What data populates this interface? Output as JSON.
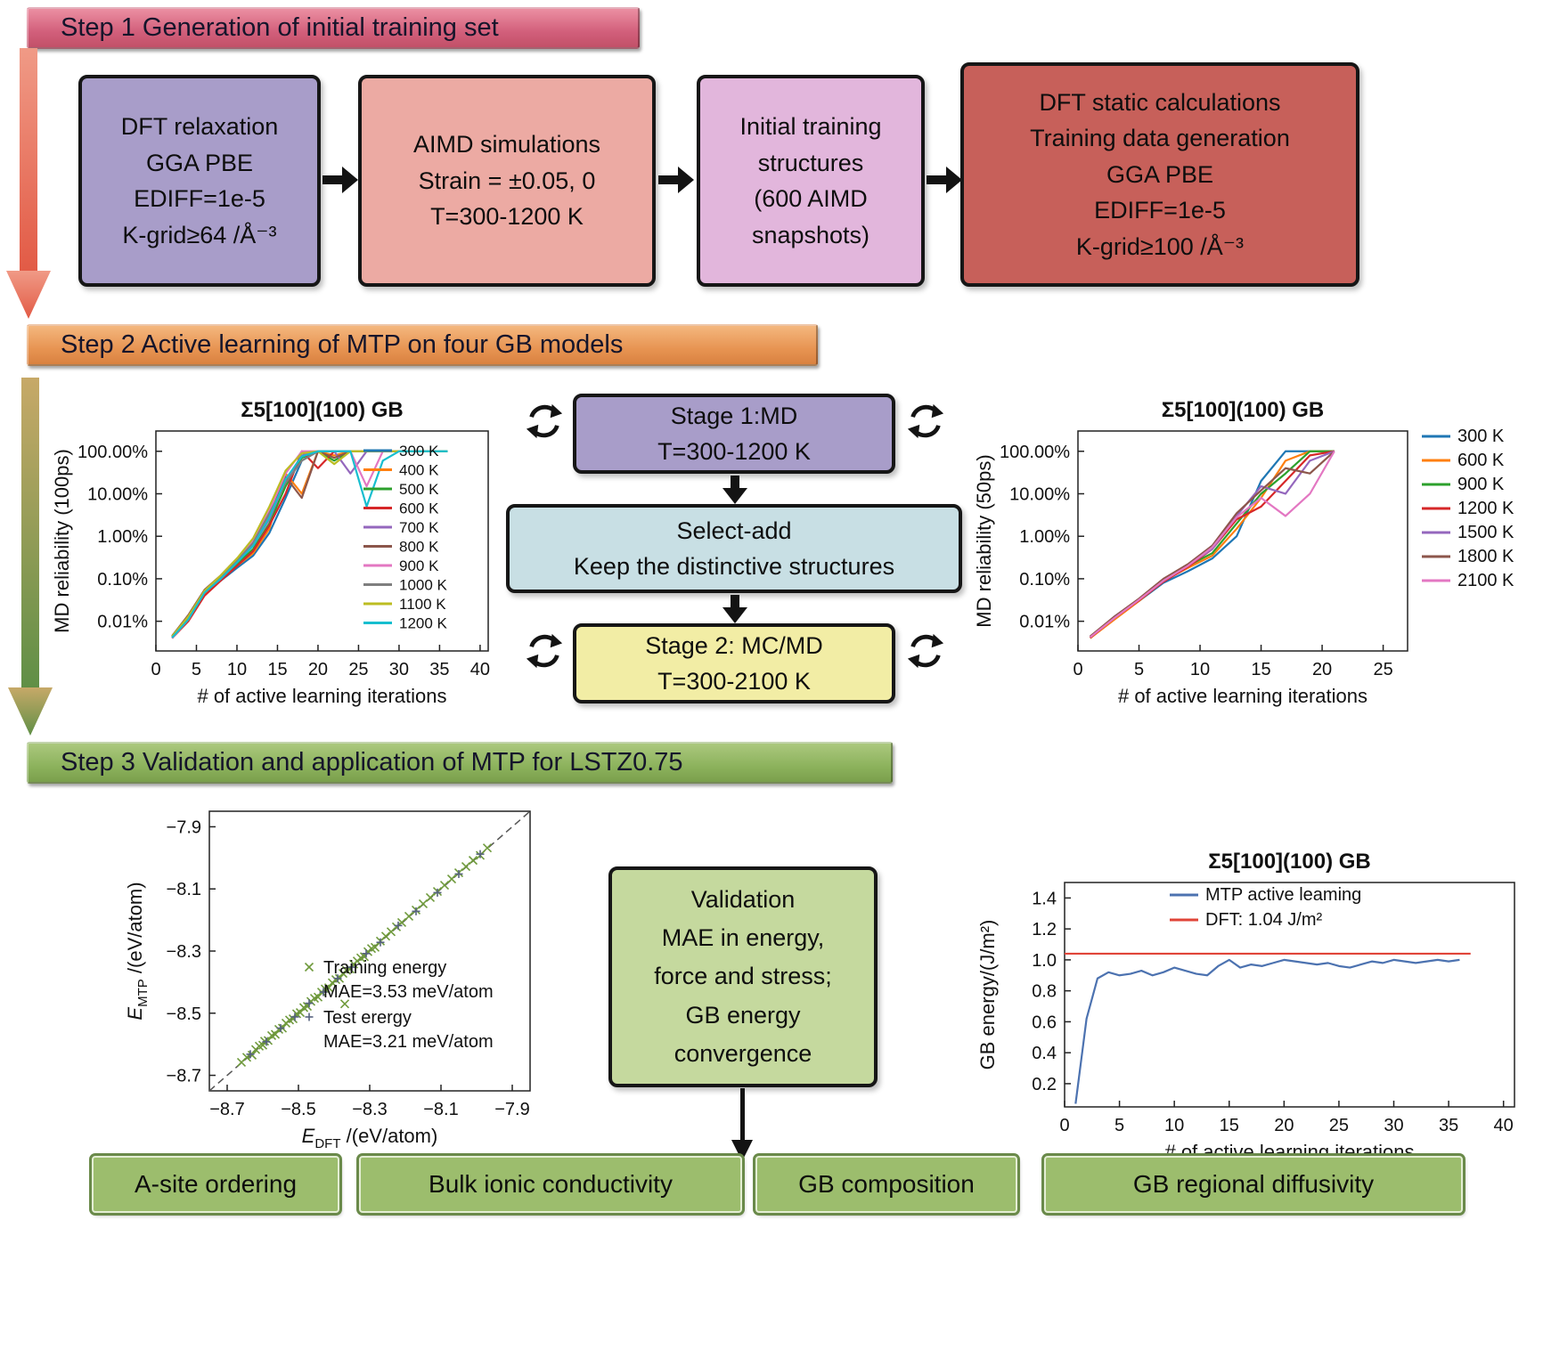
{
  "banners": {
    "step1": "Step 1 Generation of initial training set",
    "step2": "Step 2 Active learning of MTP on four GB models",
    "step3": "Step 3 Validation and application of MTP for LSTZ0.75"
  },
  "step1_boxes": [
    "DFT relaxation\nGGA PBE\nEDIFF=1e-5\nK-grid≥64 /Å⁻³",
    "AIMD simulations\nStrain = ±0.05, 0\nT=300-1200 K",
    "Initial training\nstructures\n(600 AIMD\nsnapshots)",
    "DFT static calculations\nTraining data generation\nGGA PBE\nEDIFF=1e-5\nK-grid≥100 /Å⁻³"
  ],
  "flow": {
    "stage1": "Stage 1:MD\nT=300-1200 K",
    "select_add": "Select-add\nKeep the distinctive structures",
    "stage2": "Stage 2: MC/MD\nT=300-2100 K",
    "validation": "Validation\nMAE in energy,\nforce and stress;\nGB energy\nconvergence"
  },
  "bottom_boxes": [
    "A-site ordering",
    "Bulk ionic conductivity",
    "GB composition",
    "GB regional diffusivity"
  ],
  "colors": {
    "step1_banner": "#d2607b",
    "step2_banner": "#e79452",
    "step3_banner": "#8cb25c",
    "box_dft_relax": "#a89dc9",
    "box_aimd": "#ecaaa3",
    "box_initial": "#e2b6dc",
    "box_dft_static": "#c7605a",
    "stage1_box": "#a89dc9",
    "select_add_box": "#c8dfe4",
    "stage2_box": "#f2eda5",
    "validation_box": "#c5d99e",
    "application_box": "#9cbd6d",
    "arrow_step1_2": "#e2604c",
    "arrow_step2_3_start": "#c7a968",
    "arrow_step2_3_end": "#5f8f46"
  },
  "chart_data": [
    {
      "type": "line",
      "title": "Σ5[100](100) GB",
      "xlabel": "# of active learning iterations",
      "ylabel": "MD reliability (100ps)",
      "xlim": [
        0,
        41
      ],
      "xticks": [
        0,
        5,
        10,
        15,
        20,
        25,
        30,
        35,
        40
      ],
      "yscale": "log",
      "ylim": [
        0.002,
        300
      ],
      "ytick_values": [
        100,
        10,
        1,
        0.1,
        0.01
      ],
      "ytick_labels": [
        "100.00%",
        "10.00%",
        "1.00%",
        "0.10%",
        "0.01%"
      ],
      "legend": "inside-right",
      "margins": {
        "l": 120,
        "t": 46,
        "r": 12,
        "b": 72,
        "yx": 22
      },
      "x": [
        2,
        4,
        6,
        8,
        10,
        12,
        14,
        16,
        18,
        20,
        22,
        24,
        26,
        28,
        30,
        32,
        34,
        36
      ],
      "series": [
        {
          "name": "300 K",
          "color": "#1f77b4",
          "values": [
            0.004,
            0.012,
            0.05,
            0.09,
            0.18,
            0.35,
            1.2,
            8,
            60,
            100,
            100,
            100,
            100,
            100,
            100,
            100,
            100,
            100
          ]
        },
        {
          "name": "400 K",
          "color": "#ff7f0e",
          "values": [
            0.004,
            0.011,
            0.045,
            0.1,
            0.2,
            0.4,
            1.5,
            30,
            10,
            100,
            80,
            100,
            100,
            100,
            100,
            100,
            100,
            100
          ]
        },
        {
          "name": "500 K",
          "color": "#2ca02c",
          "values": [
            0.0045,
            0.013,
            0.05,
            0.11,
            0.22,
            0.5,
            2,
            15,
            70,
            100,
            60,
            100,
            100,
            100,
            100,
            100,
            100,
            100
          ]
        },
        {
          "name": "600 K",
          "color": "#d62728",
          "values": [
            0.004,
            0.01,
            0.04,
            0.09,
            0.2,
            0.45,
            1.8,
            10,
            100,
            40,
            100,
            100,
            100,
            100,
            100,
            100,
            100,
            100
          ]
        },
        {
          "name": "700 K",
          "color": "#9467bd",
          "values": [
            0.0042,
            0.012,
            0.048,
            0.1,
            0.25,
            0.6,
            2.5,
            20,
            80,
            100,
            100,
            30,
            100,
            100,
            100,
            100,
            100,
            100
          ]
        },
        {
          "name": "800 K",
          "color": "#8c564b",
          "values": [
            0.0045,
            0.014,
            0.055,
            0.12,
            0.3,
            0.7,
            3,
            25,
            8,
            100,
            70,
            100,
            100,
            100,
            100,
            100,
            100,
            100
          ]
        },
        {
          "name": "900 K",
          "color": "#e377c2",
          "values": [
            0.004,
            0.011,
            0.05,
            0.1,
            0.28,
            0.8,
            4,
            30,
            100,
            100,
            100,
            100,
            15,
            100,
            100,
            100,
            100,
            100
          ]
        },
        {
          "name": "1000 K",
          "color": "#7f7f7f",
          "values": [
            0.0043,
            0.012,
            0.05,
            0.11,
            0.26,
            0.7,
            3.5,
            18,
            60,
            100,
            100,
            100,
            100,
            100,
            100,
            100,
            100,
            100
          ]
        },
        {
          "name": "1100 K",
          "color": "#bcbd22",
          "values": [
            0.0044,
            0.013,
            0.052,
            0.12,
            0.3,
            0.9,
            5,
            35,
            90,
            100,
            50,
            100,
            100,
            100,
            100,
            100,
            100,
            100
          ]
        },
        {
          "name": "1200 K",
          "color": "#17becf",
          "values": [
            0.0041,
            0.011,
            0.047,
            0.1,
            0.24,
            0.6,
            2.8,
            22,
            75,
            100,
            100,
            100,
            5,
            60,
            100,
            100,
            100,
            100
          ]
        }
      ]
    },
    {
      "type": "line",
      "title": "Σ5[100](100) GB",
      "xlabel": "# of active learning iterations",
      "ylabel": "MD reliability (50ps)",
      "xlim": [
        0,
        27
      ],
      "xticks": [
        0,
        5,
        10,
        15,
        20,
        25
      ],
      "yscale": "log",
      "ylim": [
        0.002,
        300
      ],
      "ytick_values": [
        100,
        10,
        1,
        0.1,
        0.01
      ],
      "ytick_labels": [
        "100.00%",
        "10.00%",
        "1.00%",
        "0.10%",
        "0.01%"
      ],
      "legend": "outside-right",
      "margins": {
        "l": 120,
        "t": 46,
        "r": 150,
        "b": 72,
        "yx": 22
      },
      "x": [
        1,
        3,
        5,
        7,
        9,
        11,
        13,
        15,
        17,
        19,
        21
      ],
      "series": [
        {
          "name": "300 K",
          "color": "#1f77b4",
          "values": [
            0.004,
            0.012,
            0.03,
            0.08,
            0.15,
            0.3,
            1,
            20,
            100,
            100,
            100
          ]
        },
        {
          "name": "600 K",
          "color": "#ff7f0e",
          "values": [
            0.004,
            0.011,
            0.03,
            0.09,
            0.18,
            0.35,
            1.5,
            8,
            60,
            100,
            100
          ]
        },
        {
          "name": "900 K",
          "color": "#2ca02c",
          "values": [
            0.0042,
            0.012,
            0.032,
            0.09,
            0.2,
            0.4,
            2,
            10,
            30,
            100,
            100
          ]
        },
        {
          "name": "1200 K",
          "color": "#d62728",
          "values": [
            0.0041,
            0.012,
            0.031,
            0.085,
            0.19,
            0.5,
            2.5,
            5,
            20,
            80,
            100
          ]
        },
        {
          "name": "1500 K",
          "color": "#9467bd",
          "values": [
            0.0043,
            0.013,
            0.033,
            0.09,
            0.21,
            0.5,
            3,
            15,
            10,
            60,
            100
          ]
        },
        {
          "name": "1800 K",
          "color": "#8c564b",
          "values": [
            0.0044,
            0.013,
            0.034,
            0.1,
            0.22,
            0.6,
            3.5,
            12,
            40,
            30,
            100
          ]
        },
        {
          "name": "2100 K",
          "color": "#e377c2",
          "values": [
            0.0042,
            0.012,
            0.032,
            0.09,
            0.2,
            0.55,
            2.8,
            8,
            3,
            10,
            100
          ]
        }
      ]
    },
    {
      "type": "scatter",
      "xlabel": [
        {
          "t": "E",
          "i": 1
        },
        {
          "t": "DFT",
          "s": 1
        },
        {
          "t": " /(eV/atom)"
        }
      ],
      "ylabel": [
        {
          "t": "E",
          "i": 1
        },
        {
          "t": "MTP",
          "s": 1
        },
        {
          "t": " /(eV/atom)"
        }
      ],
      "xlim": [
        -8.75,
        -7.85
      ],
      "xticks": [
        -8.7,
        -8.5,
        -8.3,
        -8.1,
        -7.9
      ],
      "xtick_labels": [
        "−8.7",
        "−8.5",
        "−8.3",
        "−8.1",
        "−7.9"
      ],
      "ylim": [
        -8.75,
        -7.85
      ],
      "ytick_values": [
        -7.9,
        -8.1,
        -8.3,
        -8.5,
        -8.7
      ],
      "ytick_labels": [
        "−7.9",
        "−8.1",
        "−8.3",
        "−8.5",
        "−8.7"
      ],
      "diagonal": true,
      "legend": "scatter",
      "margins": {
        "l": 100,
        "t": 18,
        "r": 20,
        "b": 78,
        "yx": 24
      },
      "series": [
        {
          "name": "Training energy",
          "mae": "MAE=3.53 meV/atom",
          "marker": "x",
          "color": "#6f9a3c",
          "points": [
            [
              -8.66,
              -8.658
            ],
            [
              -8.645,
              -8.642
            ],
            [
              -8.63,
              -8.635
            ],
            [
              -8.62,
              -8.617
            ],
            [
              -8.61,
              -8.606
            ],
            [
              -8.6,
              -8.603
            ],
            [
              -8.595,
              -8.59
            ],
            [
              -8.585,
              -8.588
            ],
            [
              -8.575,
              -8.572
            ],
            [
              -8.565,
              -8.568
            ],
            [
              -8.555,
              -8.552
            ],
            [
              -8.545,
              -8.548
            ],
            [
              -8.535,
              -8.532
            ],
            [
              -8.525,
              -8.522
            ],
            [
              -8.515,
              -8.518
            ],
            [
              -8.505,
              -8.502
            ],
            [
              -8.495,
              -8.498
            ],
            [
              -8.485,
              -8.482
            ],
            [
              -8.475,
              -8.478
            ],
            [
              -8.465,
              -8.462
            ],
            [
              -8.455,
              -8.452
            ],
            [
              -8.445,
              -8.448
            ],
            [
              -8.435,
              -8.432
            ],
            [
              -8.425,
              -8.422
            ],
            [
              -8.415,
              -8.418
            ],
            [
              -8.405,
              -8.402
            ],
            [
              -8.395,
              -8.392
            ],
            [
              -8.385,
              -8.388
            ],
            [
              -8.375,
              -8.372
            ],
            [
              -8.365,
              -8.362
            ],
            [
              -8.355,
              -8.358
            ],
            [
              -8.345,
              -8.342
            ],
            [
              -8.335,
              -8.332
            ],
            [
              -8.325,
              -8.322
            ],
            [
              -8.315,
              -8.318
            ],
            [
              -8.305,
              -8.302
            ],
            [
              -8.295,
              -8.292
            ],
            [
              -8.285,
              -8.288
            ],
            [
              -8.27,
              -8.268
            ],
            [
              -8.255,
              -8.252
            ],
            [
              -8.24,
              -8.238
            ],
            [
              -8.225,
              -8.222
            ],
            [
              -8.21,
              -8.208
            ],
            [
              -8.19,
              -8.188
            ],
            [
              -8.17,
              -8.168
            ],
            [
              -8.15,
              -8.148
            ],
            [
              -8.13,
              -8.128
            ],
            [
              -8.11,
              -8.108
            ],
            [
              -8.09,
              -8.088
            ],
            [
              -8.07,
              -8.068
            ],
            [
              -8.05,
              -8.048
            ],
            [
              -8.03,
              -8.028
            ],
            [
              -8.01,
              -8.008
            ],
            [
              -7.99,
              -7.992
            ],
            [
              -7.97,
              -7.968
            ],
            [
              -8.37,
              -8.47
            ]
          ]
        },
        {
          "name": "Test erergy",
          "mae": "MAE=3.21 meV/atom",
          "marker": "+",
          "color": "#56627e",
          "points": [
            [
              -8.635,
              -8.632
            ],
            [
              -8.59,
              -8.592
            ],
            [
              -8.55,
              -8.548
            ],
            [
              -8.51,
              -8.512
            ],
            [
              -8.47,
              -8.468
            ],
            [
              -8.43,
              -8.432
            ],
            [
              -8.39,
              -8.388
            ],
            [
              -8.35,
              -8.352
            ],
            [
              -8.31,
              -8.308
            ],
            [
              -8.27,
              -8.272
            ],
            [
              -8.22,
              -8.218
            ],
            [
              -8.17,
              -8.172
            ],
            [
              -8.11,
              -8.112
            ],
            [
              -8.05,
              -8.052
            ],
            [
              -7.99,
              -7.988
            ]
          ]
        }
      ]
    },
    {
      "type": "line",
      "title": "Σ5[100](100) GB",
      "xlabel": "# of active learning iterations",
      "ylabel": "GB energy/(J/m²)",
      "xlim": [
        0,
        41
      ],
      "xticks": [
        0,
        5,
        10,
        15,
        20,
        25,
        30,
        35,
        40
      ],
      "ylim": [
        0.05,
        1.5
      ],
      "ytick_values": [
        0.2,
        0.4,
        0.6,
        0.8,
        1.0,
        1.2,
        1.4
      ],
      "ytick_labels": [
        "0.2",
        "0.4",
        "0.6",
        "0.8",
        "1.0",
        "1.2",
        "1.4"
      ],
      "legend": "inside-top",
      "margins": {
        "l": 105,
        "t": 46,
        "r": 30,
        "b": 72,
        "yx": 26
      },
      "series": [
        {
          "name": "MTP active leaming",
          "color": "#4c72b0",
          "x": [
            1,
            2,
            3,
            4,
            5,
            6,
            7,
            8,
            9,
            10,
            11,
            12,
            13,
            14,
            15,
            16,
            17,
            18,
            19,
            20,
            21,
            22,
            23,
            24,
            25,
            26,
            27,
            28,
            29,
            30,
            31,
            32,
            33,
            34,
            35,
            36
          ],
          "values": [
            0.07,
            0.62,
            0.88,
            0.92,
            0.9,
            0.91,
            0.93,
            0.9,
            0.92,
            0.95,
            0.93,
            0.91,
            0.9,
            0.96,
            1.0,
            0.95,
            0.97,
            0.96,
            0.98,
            1.0,
            0.99,
            0.98,
            0.97,
            0.98,
            0.96,
            0.95,
            0.97,
            0.99,
            0.98,
            1.0,
            0.99,
            0.98,
            0.99,
            1.0,
            0.99,
            1.0
          ]
        },
        {
          "name": "DFT: 1.04 J/m²",
          "color": "#e04438",
          "x": [
            0,
            37
          ],
          "values": [
            1.04,
            1.04
          ]
        }
      ]
    }
  ]
}
